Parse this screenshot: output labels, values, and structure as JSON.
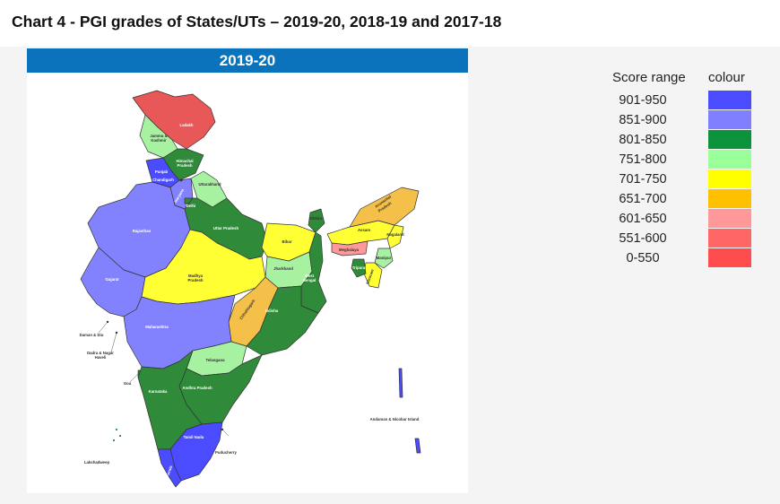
{
  "page": {
    "title": "Chart 4 - PGI grades of States/UTs – 2019-20, 2018-19 and 2017-18"
  },
  "map": {
    "year": "2019-20",
    "labels": {
      "ladakh": "Ladakh",
      "jammu_kashmir_1": "Jammu &",
      "jammu_kashmir_2": "Kashmir",
      "himachal_1": "Himachal",
      "himachal_2": "Pradesh",
      "punjab": "Punjab",
      "chandigarh": "Chandigarh",
      "uttarakhand": "Uttarakhand",
      "haryana": "Haryana",
      "delhi": "Delhi",
      "rajasthan": "Rajasthan",
      "uttar_pradesh": "Uttar Pradesh",
      "bihar": "Bihar",
      "sikkim": "Sikkim",
      "arunachal_1": "Arunachal",
      "arunachal_2": "Pradesh",
      "assam": "Assam",
      "nagaland": "Nagaland",
      "meghalaya": "Meghalaya",
      "manipur": "Manipur",
      "mizoram": "Mizoram",
      "tripura": "Tripura",
      "gujarat": "Gujarat",
      "madhya_pradesh_1": "Madhya",
      "madhya_pradesh_2": "Pradesh",
      "jharkhand": "Jharkhand",
      "west_bengal_1": "West",
      "west_bengal_2": "Bengal",
      "chhattisgarh": "Chhattisgarh",
      "odisha": "Odisha",
      "daman_diu": "Daman & Diu",
      "dadra_1": "Dadra & Nagar",
      "dadra_2": "Haveli",
      "maharashtra": "Maharashtra",
      "telangana": "Telangana",
      "goa": "Goa",
      "karnataka": "Karnataka",
      "andhra_pradesh": "Andhra Pradesh",
      "andaman": "Andaman & Nicobar Island",
      "puducherry": "Puducherry",
      "tamil_nadu": "Tamil Nadu",
      "lakshadweep": "Lakshadweep",
      "kerala": "Kerala"
    }
  },
  "legend": {
    "range_header": "Score range",
    "colour_header": "colour",
    "items": [
      {
        "range": "901-950",
        "color": "#4b4bff"
      },
      {
        "range": "851-900",
        "color": "#7f7fff"
      },
      {
        "range": "801-850",
        "color": "#0c923a"
      },
      {
        "range": "751-800",
        "color": "#99ff99"
      },
      {
        "range": "701-750",
        "color": "#ffff00"
      },
      {
        "range": "651-700",
        "color": "#ffc000"
      },
      {
        "range": "601-650",
        "color": "#ff9999"
      },
      {
        "range": "551-600",
        "color": "#ff6666"
      },
      {
        "range": "0-550",
        "color": "#ff4d4d"
      }
    ]
  },
  "colors": {
    "grade_901_950": "#4b4bff",
    "grade_851_900": "#8282ff",
    "grade_801_850": "#2f8a3a",
    "grade_751_800": "#a6f2a0",
    "grade_701_750": "#ffff33",
    "grade_651_700": "#f4c04a",
    "grade_601_650": "#ff9999",
    "grade_551_600": "#ff6666",
    "grade_0_550": "#e85858"
  }
}
